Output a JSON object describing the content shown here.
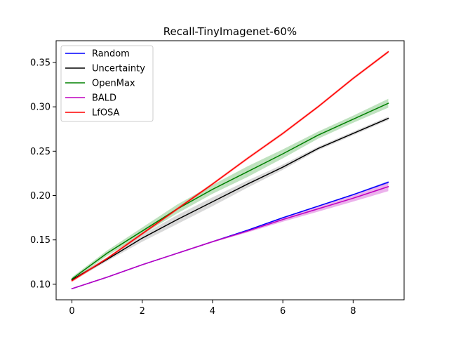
{
  "chart_data": {
    "type": "line",
    "title": "Recall-TinyImagenet-60%",
    "xlabel": "",
    "ylabel": "",
    "xlim": [
      -0.45,
      9.45
    ],
    "ylim": [
      0.0825,
      0.3745
    ],
    "x_ticks": [
      0,
      2,
      4,
      6,
      8
    ],
    "y_ticks": [
      0.1,
      0.15,
      0.2,
      0.25,
      0.3,
      0.35
    ],
    "x_tick_labels": [
      "0",
      "2",
      "4",
      "6",
      "8"
    ],
    "y_tick_labels": [
      "0.10",
      "0.15",
      "0.20",
      "0.25",
      "0.30",
      "0.35"
    ],
    "grid": false,
    "legend_position": "top-left",
    "x": [
      0,
      1,
      2,
      3,
      4,
      5,
      6,
      7,
      8,
      9
    ],
    "series": [
      {
        "name": "Random",
        "color": "#0000ff",
        "band_color": "#0000ff",
        "values": [
          0.095,
          0.108,
          0.122,
          0.135,
          0.148,
          0.161,
          0.175,
          0.188,
          0.201,
          0.215
        ],
        "lower": [
          0.0945,
          0.1075,
          0.1215,
          0.1345,
          0.1475,
          0.1605,
          0.1743,
          0.1873,
          0.2003,
          0.2138
        ],
        "upper": [
          0.0955,
          0.1085,
          0.1225,
          0.1355,
          0.1485,
          0.1615,
          0.1757,
          0.1887,
          0.2017,
          0.2162
        ]
      },
      {
        "name": "Uncertainty",
        "color": "#000000",
        "band_color": "#808080",
        "values": [
          0.105,
          0.128,
          0.152,
          0.173,
          0.193,
          0.213,
          0.232,
          0.253,
          0.27,
          0.287
        ],
        "lower": [
          0.1035,
          0.126,
          0.148,
          0.168,
          0.188,
          0.209,
          0.229,
          0.251,
          0.268,
          0.285
        ],
        "upper": [
          0.1065,
          0.13,
          0.156,
          0.178,
          0.198,
          0.217,
          0.235,
          0.255,
          0.272,
          0.289
        ]
      },
      {
        "name": "OpenMax",
        "color": "#008000",
        "band_color": "#2ca02c",
        "values": [
          0.106,
          0.135,
          0.16,
          0.185,
          0.207,
          0.227,
          0.247,
          0.268,
          0.286,
          0.304
        ],
        "lower": [
          0.104,
          0.132,
          0.156,
          0.18,
          0.202,
          0.221,
          0.242,
          0.264,
          0.282,
          0.299
        ],
        "upper": [
          0.108,
          0.138,
          0.164,
          0.19,
          0.212,
          0.233,
          0.252,
          0.272,
          0.29,
          0.309
        ]
      },
      {
        "name": "BALD",
        "color": "#bf00bf",
        "band_color": "#bf00bf",
        "values": [
          0.095,
          0.108,
          0.122,
          0.135,
          0.148,
          0.16,
          0.173,
          0.185,
          0.197,
          0.21
        ],
        "lower": [
          0.0945,
          0.1075,
          0.1215,
          0.1345,
          0.1472,
          0.1585,
          0.1705,
          0.1818,
          0.1932,
          0.205
        ],
        "upper": [
          0.0955,
          0.1085,
          0.1225,
          0.1355,
          0.1488,
          0.1615,
          0.1755,
          0.1882,
          0.2008,
          0.215
        ]
      },
      {
        "name": "LfOSA",
        "color": "#ff0000",
        "band_color": "#ff0000",
        "values": [
          0.104,
          0.129,
          0.157,
          0.185,
          0.213,
          0.242,
          0.27,
          0.3,
          0.332,
          0.362
        ],
        "lower": [
          0.1025,
          0.1275,
          0.1555,
          0.1835,
          0.2115,
          0.2405,
          0.2685,
          0.2985,
          0.3305,
          0.3605
        ],
        "upper": [
          0.1055,
          0.1305,
          0.1585,
          0.1865,
          0.2145,
          0.2435,
          0.2715,
          0.3015,
          0.3335,
          0.3635
        ]
      }
    ]
  }
}
